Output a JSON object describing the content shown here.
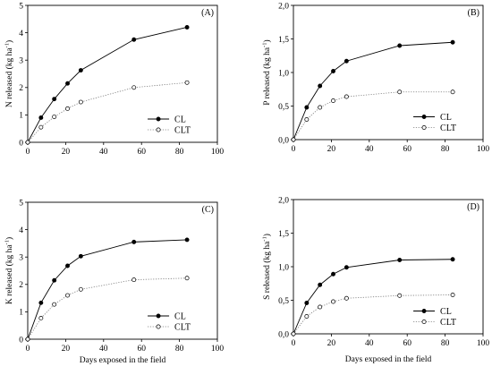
{
  "xlabel": "Days exposed in the field",
  "chart_data": [
    {
      "type": "line",
      "panel_label": "(A)",
      "ylabel": {
        "prefix": "N released (kg ha",
        "sup": "-1",
        "suffix": ")"
      },
      "xlim": [
        0,
        100
      ],
      "ylim": [
        0,
        5
      ],
      "xticks": [
        0,
        20,
        40,
        60,
        80,
        100
      ],
      "yticks": [
        0,
        1,
        2,
        3,
        4,
        5
      ],
      "ytick_labels": [
        "0",
        "1",
        "2",
        "3",
        "4",
        "5"
      ],
      "x": [
        0,
        7,
        14,
        21,
        28,
        56,
        84
      ],
      "series": [
        {
          "name": "CL",
          "style": "filled",
          "values": [
            0,
            0.9,
            1.58,
            2.15,
            2.63,
            3.75,
            4.2
          ]
        },
        {
          "name": "CLT",
          "style": "open",
          "values": [
            0,
            0.55,
            0.93,
            1.23,
            1.47,
            2.0,
            2.18
          ]
        }
      ],
      "legend": "right"
    },
    {
      "type": "line",
      "panel_label": "(B)",
      "ylabel": {
        "prefix": "P released (kg ha",
        "sup": "-1",
        "suffix": ")"
      },
      "xlim": [
        0,
        100
      ],
      "ylim": [
        0,
        2
      ],
      "xticks": [
        0,
        20,
        40,
        60,
        80,
        100
      ],
      "yticks": [
        0,
        0.5,
        1,
        1.5,
        2
      ],
      "ytick_labels": [
        "0,0",
        "0,5",
        "1,0",
        "1,5",
        "2,0"
      ],
      "x": [
        0,
        7,
        14,
        21,
        28,
        56,
        84
      ],
      "series": [
        {
          "name": "CL",
          "style": "filled",
          "values": [
            0,
            0.48,
            0.8,
            1.02,
            1.17,
            1.4,
            1.45
          ]
        },
        {
          "name": "CLT",
          "style": "open",
          "values": [
            0,
            0.3,
            0.48,
            0.58,
            0.64,
            0.71,
            0.71
          ]
        }
      ],
      "legend": "right"
    },
    {
      "type": "line",
      "panel_label": "(C)",
      "ylabel": {
        "prefix": "K released (kg ha",
        "sup": "-1",
        "suffix": ")"
      },
      "xlim": [
        0,
        100
      ],
      "ylim": [
        0,
        5
      ],
      "xticks": [
        0,
        20,
        40,
        60,
        80,
        100
      ],
      "yticks": [
        0,
        1,
        2,
        3,
        4,
        5
      ],
      "ytick_labels": [
        "0",
        "1",
        "2",
        "3",
        "4",
        "5"
      ],
      "x": [
        0,
        7,
        14,
        21,
        28,
        56,
        84
      ],
      "series": [
        {
          "name": "CL",
          "style": "filled",
          "values": [
            0,
            1.33,
            2.15,
            2.68,
            3.03,
            3.55,
            3.63
          ]
        },
        {
          "name": "CLT",
          "style": "open",
          "values": [
            0,
            0.77,
            1.27,
            1.6,
            1.82,
            2.17,
            2.23
          ]
        }
      ],
      "legend": "right"
    },
    {
      "type": "line",
      "panel_label": "(D)",
      "ylabel": {
        "prefix": "S released (kg ha",
        "sup": "-1",
        "suffix": ")"
      },
      "xlim": [
        0,
        100
      ],
      "ylim": [
        0,
        2
      ],
      "xticks": [
        0,
        20,
        40,
        60,
        80,
        100
      ],
      "yticks": [
        0,
        0.5,
        1,
        1.5,
        2
      ],
      "ytick_labels": [
        "0,0",
        "0,5",
        "1,0",
        "1,5",
        "2,0"
      ],
      "x": [
        0,
        7,
        14,
        21,
        28,
        56,
        84
      ],
      "series": [
        {
          "name": "CL",
          "style": "filled",
          "values": [
            0,
            0.46,
            0.73,
            0.89,
            0.99,
            1.1,
            1.11
          ]
        },
        {
          "name": "CLT",
          "style": "open",
          "values": [
            0,
            0.26,
            0.4,
            0.48,
            0.53,
            0.57,
            0.58
          ]
        }
      ],
      "legend": "right"
    }
  ]
}
